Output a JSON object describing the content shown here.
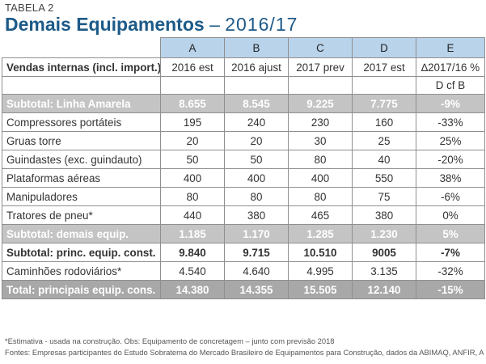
{
  "kicker": "TABELA 2",
  "title": {
    "main": "Demais Equipamentos",
    "dash": "–",
    "period": "2016/17"
  },
  "columns": {
    "letters": [
      "A",
      "B",
      "C",
      "D",
      "E"
    ],
    "row_label_header": "Vendas internas (incl. import.)",
    "headers": [
      "2016 est",
      "2016 ajust",
      "2017 prev",
      "2017 est",
      "∆2017/16 %"
    ],
    "sub_header_e": "D cf B"
  },
  "rows": [
    {
      "label": "Subtotal: Linha Amarela",
      "values": [
        "8.655",
        "8.545",
        "9.225",
        "7.775",
        "-9%"
      ],
      "style": "sub"
    },
    {
      "label": "Compressores portáteis",
      "values": [
        "195",
        "240",
        "230",
        "160",
        "-33%"
      ],
      "style": "normal"
    },
    {
      "label": "Gruas torre",
      "values": [
        "20",
        "20",
        "30",
        "25",
        "25%"
      ],
      "style": "normal"
    },
    {
      "label": "Guindastes (exc. guindauto)",
      "values": [
        "50",
        "50",
        "80",
        "40",
        "-20%"
      ],
      "style": "normal"
    },
    {
      "label": "Plataformas aéreas",
      "values": [
        "400",
        "400",
        "400",
        "550",
        "38%"
      ],
      "style": "normal"
    },
    {
      "label": "Manipuladores",
      "values": [
        "80",
        "80",
        "80",
        "75",
        "-6%"
      ],
      "style": "normal"
    },
    {
      "label": "Tratores de pneu*",
      "values": [
        "440",
        "380",
        "465",
        "380",
        "0%"
      ],
      "style": "normal"
    },
    {
      "label": "Subtotal: demais equip.",
      "values": [
        "1.185",
        "1.170",
        "1.285",
        "1.230",
        "5%"
      ],
      "style": "sub"
    },
    {
      "label": "Subtotal: princ. equip. const.",
      "values": [
        "9.840",
        "9.715",
        "10.510",
        "9005",
        "-7%"
      ],
      "style": "boldrow"
    },
    {
      "label": "Caminhões rodoviários*",
      "values": [
        "4.540",
        "4.640",
        "4.995",
        "3.135",
        "-32%"
      ],
      "style": "normal"
    },
    {
      "label": "Total: principais equip. cons.",
      "values": [
        "14.380",
        "14.355",
        "15.505",
        "12.140",
        "-15%"
      ],
      "style": "total"
    }
  ],
  "footnotes": [
    "*Estimativa - usada na construção. Obs: Equipamento de concretagem – junto com previsão 2018",
    "Fontes: Empresas participantes do Estudo Sobratema do Mercado Brasileiro de Equipamentos para Construção, dados da ABIMAQ, ANFIR, ANFAVEA"
  ],
  "colors": {
    "title": "#1d5a88",
    "letters_bg": "#b9d3ea",
    "subtotal_bg": "#c4c4c4",
    "total_bg": "#a8a8a8"
  }
}
